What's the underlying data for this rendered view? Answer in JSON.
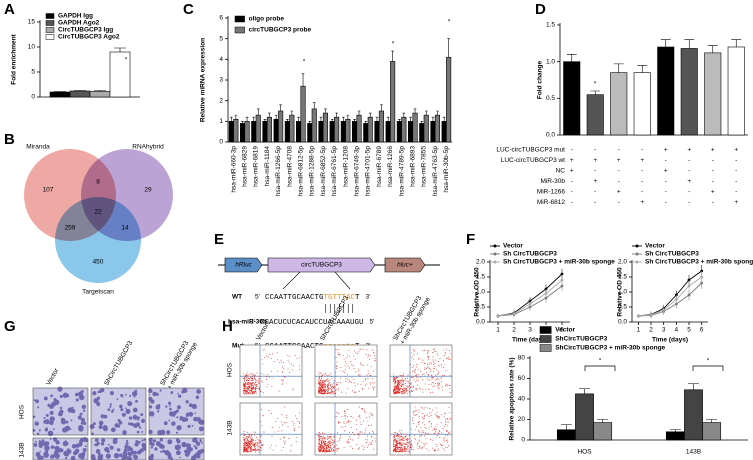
{
  "chart_data": [
    {
      "panel": "A",
      "type": "bar",
      "ylabel": "Fold enrichment",
      "categories": [
        null
      ],
      "series": [
        {
          "name": "GAPDH Igg",
          "color": "#000000",
          "values": [
            1.0
          ],
          "errors": [
            0.1
          ]
        },
        {
          "name": "GAPDH Ago2",
          "color": "#555555",
          "values": [
            1.2
          ],
          "errors": [
            0.1
          ]
        },
        {
          "name": "CircTUBGCP3 Igg",
          "color": "#aaaaaa",
          "values": [
            1.1
          ],
          "errors": [
            0.2
          ]
        },
        {
          "name": "CircTUBGCP3 Ago2",
          "color": "#ffffff",
          "values": [
            9
          ],
          "errors": [
            0.8
          ]
        }
      ],
      "ylim": [
        0,
        15
      ],
      "yticks": [
        0,
        5,
        10,
        15
      ],
      "annotations": [
        "*"
      ]
    },
    {
      "panel": "C",
      "type": "bar",
      "ylabel": "Relative miRNA expression",
      "categories": [
        "hsa-miR-660-3p",
        "hsa-miR-6829",
        "hsa-miR-6819",
        "hsa-miR-1184",
        "hsa-miR-1266-5p",
        "hsa-miR-4708",
        "hsa-miR-6812-5p",
        "hsa-miR-1288-5p",
        "hsa-miR-6852-5p",
        "hsa-miR-6761-5p",
        "hsa-miR-1208",
        "hsa-miR-6749-3p",
        "hsa-miR-4701-5p",
        "hsa-miR-6789",
        "hsa-miR-1266",
        "hsa-miR-4789-5p",
        "hsa-miR-6893",
        "hsa-miR-7855",
        "hsa-miR-4763-5p",
        "hsa-miR-30b-5p"
      ],
      "series": [
        {
          "name": "oligo probe",
          "color": "#000000",
          "values": [
            1.0,
            0.9,
            1.0,
            1.0,
            1.1,
            1.0,
            1.0,
            0.9,
            1.0,
            1.0,
            1.0,
            1.0,
            0.9,
            1.0,
            1.0,
            1.0,
            1.0,
            0.9,
            1.0,
            1.0
          ],
          "errors": [
            0.2,
            0.1,
            0.2,
            0.1,
            0.2,
            0.1,
            0.2,
            0.1,
            0.2,
            0.1,
            0.2,
            0.1,
            0.1,
            0.2,
            0.2,
            0.1,
            0.2,
            0.1,
            0.2,
            0.2
          ]
        },
        {
          "name": "circTUBGCP3 probe",
          "color": "#777777",
          "values": [
            1.1,
            1.0,
            1.3,
            1.2,
            1.5,
            1.3,
            2.7,
            1.6,
            1.4,
            1.2,
            1.1,
            1.3,
            1.2,
            1.5,
            3.9,
            1.2,
            1.4,
            1.3,
            1.3,
            4.1
          ],
          "errors": [
            0.2,
            0.2,
            0.3,
            0.2,
            0.3,
            0.2,
            0.6,
            0.3,
            0.2,
            0.2,
            0.2,
            0.2,
            0.2,
            0.3,
            0.5,
            0.2,
            0.2,
            0.2,
            0.2,
            0.9
          ]
        }
      ],
      "ylim": [
        0,
        6
      ],
      "yticks": [
        0,
        1,
        2,
        3,
        4,
        5,
        6
      ],
      "annotations": [
        "*",
        "*",
        "*"
      ]
    },
    {
      "panel": "D",
      "type": "bar",
      "ylabel": "Fold change",
      "categories": [
        null,
        null,
        null,
        null,
        null,
        null,
        null,
        null
      ],
      "series": [
        {
          "values": [
            1.0,
            0.55,
            0.85,
            0.85,
            1.2,
            1.18,
            1.12,
            1.2
          ],
          "errors": [
            0.1,
            0.05,
            0.12,
            0.1,
            0.1,
            0.12,
            0.1,
            0.1
          ],
          "colors": [
            "#000000",
            "#555555",
            "#bbbbbb",
            "#ffffff",
            "#000000",
            "#555555",
            "#bbbbbb",
            "#ffffff"
          ]
        }
      ],
      "ylim": [
        0,
        1.5
      ],
      "yticks": [
        {
          "value": 0,
          "label": "0.0"
        },
        0.5,
        {
          "value": 1,
          "label": "1.0"
        },
        1.5
      ],
      "annotations": [
        "*"
      ],
      "conditions": [
        {
          "label": "LUC-circTUBGCP3 mut",
          "values": [
            "-",
            "-",
            "-",
            "-",
            "+",
            "+",
            "+",
            "+"
          ]
        },
        {
          "label": "LUC-circTUBGCP3 wt",
          "values": [
            "+",
            "+",
            "+",
            "+",
            "-",
            "-",
            "-",
            "-"
          ]
        },
        {
          "label": "NC",
          "values": [
            "+",
            "-",
            "-",
            "-",
            "+",
            "-",
            "-",
            "-"
          ]
        },
        {
          "label": "MiR-30b",
          "values": [
            "-",
            "+",
            "-",
            "-",
            "-",
            "+",
            "-",
            "-"
          ]
        },
        {
          "label": "MiR-1266",
          "values": [
            "-",
            "-",
            "+",
            "-",
            "-",
            "-",
            "+",
            "-"
          ]
        },
        {
          "label": "MiR-6812",
          "values": [
            "-",
            "-",
            "-",
            "+",
            "-",
            "-",
            "-",
            "+"
          ]
        }
      ]
    },
    {
      "panel": "F",
      "type": "line",
      "xlabel": "Time (days)",
      "ylabel": "Relative OD 450",
      "x": [
        1,
        2,
        3,
        4,
        5
      ],
      "xlim": [
        0.5,
        5.5
      ],
      "xticks": [
        1,
        2,
        3,
        4,
        5
      ],
      "ylim": [
        0,
        2
      ],
      "yticks": [
        {
          "value": 0,
          "label": "0.0"
        },
        0.5,
        {
          "value": 1,
          "label": "1.0"
        },
        1.5,
        {
          "value": 2,
          "label": "2.0"
        }
      ],
      "series": [
        {
          "name": "Vector",
          "color": "#000000",
          "values": [
            0.2,
            0.3,
            0.7,
            1.1,
            1.6
          ]
        },
        {
          "name": "Sh CircTUBGCP3",
          "color": "#777777",
          "values": [
            0.2,
            0.25,
            0.5,
            0.8,
            1.2
          ]
        },
        {
          "name": "Sh CircTUBGCP3 + miR-30b sponge",
          "color": "#aaaaaa",
          "values": [
            0.2,
            0.28,
            0.6,
            0.95,
            1.4
          ]
        }
      ]
    },
    {
      "type": "line",
      "xlabel": "Time (days)",
      "ylabel": "Relative OD 450",
      "x": [
        1,
        2,
        3,
        4,
        5,
        6
      ],
      "xlim": [
        0.5,
        6.5
      ],
      "xticks": [
        1,
        2,
        3,
        4,
        5,
        6
      ],
      "ylim": [
        0,
        2
      ],
      "yticks": [
        {
          "value": 0,
          "label": "0.0"
        },
        0.5,
        {
          "value": 1,
          "label": "1.0"
        },
        1.5,
        {
          "value": 2,
          "label": "2.0"
        }
      ],
      "series": [
        {
          "name": "Vector",
          "color": "#000000",
          "values": [
            0.2,
            0.25,
            0.45,
            0.9,
            1.4,
            1.7
          ]
        },
        {
          "name": "Sh CircTUBGCP3",
          "color": "#777777",
          "values": [
            0.2,
            0.22,
            0.35,
            0.6,
            0.9,
            1.3
          ]
        },
        {
          "name": "Sh CircTUBGCP3 + miR-30b sponge",
          "color": "#aaaaaa",
          "values": [
            0.2,
            0.24,
            0.4,
            0.75,
            1.2,
            1.5
          ]
        }
      ]
    },
    {
      "type": "bar",
      "ylabel": "Relative apoptosis rate (%)",
      "categories": [
        "HOS",
        "143B"
      ],
      "series": [
        {
          "name": "Vector",
          "color": "#000000",
          "values": [
            10,
            8
          ],
          "errors": [
            5,
            2
          ]
        },
        {
          "name": "ShCircTUBGCP3",
          "color": "#444444",
          "values": [
            45,
            49
          ],
          "errors": [
            5,
            6
          ]
        },
        {
          "name": "ShCircTUBGCP3 + miR-30b sponge",
          "color": "#888888",
          "values": [
            17,
            17
          ],
          "errors": [
            3,
            3
          ]
        }
      ],
      "ylim": [
        0,
        80
      ],
      "yticks": [
        0,
        20,
        40,
        60,
        80
      ],
      "annotations": [
        "*",
        "*"
      ]
    }
  ],
  "venn": {
    "panel": "B",
    "sets": [
      "Miranda",
      "RNAhybrid",
      "Targetscan"
    ],
    "counts": [
      107,
      8,
      29,
      259,
      22,
      14,
      450
    ]
  },
  "construct": {
    "panel": "E",
    "elements": [
      "hRluc",
      "circTUBGCP3",
      "hluc+"
    ],
    "sequences": [
      {
        "label": "WT",
        "start": "5'",
        "parts": [
          "CCAATTGCAACTG",
          "TGTTTAC",
          "T"
        ],
        "end": "3'"
      },
      {
        "label": "hsa-miR-30b",
        "start": "3'",
        "parts": [
          "CGACUCUCACAUCCUACAAAUGU"
        ],
        "end": "5'"
      },
      {
        "label": "Mut",
        "start": "5'",
        "parts": [
          "CCAATTGCAACTG",
          "acaaatg",
          "T"
        ],
        "end": "3'"
      }
    ]
  },
  "invasion": {
    "panel": "G",
    "columns": [
      [
        "Vector"
      ],
      [
        "ShCircTUBGCP3"
      ],
      [
        "ShCircTUBGCP3",
        "+ miR-30b sponge"
      ]
    ],
    "rows": [
      "HOS",
      "143B"
    ]
  },
  "flow": {
    "panel": "H",
    "columns": [
      [
        "Vector"
      ],
      [
        "ShCircTUBGCP3"
      ],
      [
        "ShCircTUBGCP3",
        "+ miR-30b sponge"
      ]
    ],
    "rows": [
      "HOS",
      "143B"
    ]
  }
}
